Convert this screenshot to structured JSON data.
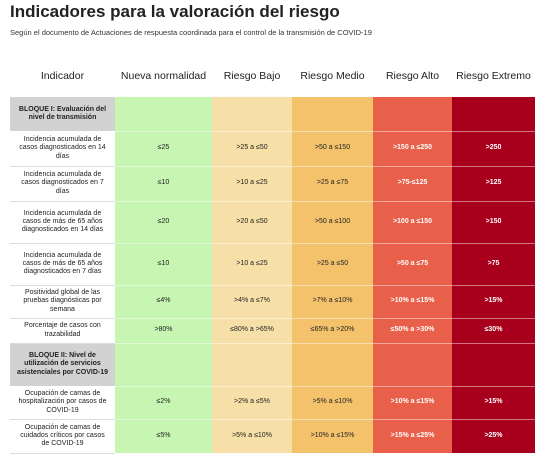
{
  "header": {
    "title": "Indicadores para la valoración del riesgo",
    "subtitle": "Según el documento de Actuaciones de respuesta coordinada para el control de la transmisión de COVID-19"
  },
  "table": {
    "columns": [
      "Indicador",
      "Nueva normalidad",
      "Riesgo Bajo",
      "Riesgo Medio",
      "Riesgo Alto",
      "Riesgo Extremo"
    ],
    "sections": [
      {
        "title": "BLOQUE I: Evaluación del nivel de transmisión",
        "rows": [
          [
            "Incidencia acumulada de casos diagnosticados en 14 días",
            "≤25",
            ">25 a ≤50",
            ">50 a ≤150",
            ">150 a ≤250",
            ">250"
          ],
          [
            "Incidencia acumulada de casos diagnosticados en 7 días",
            "≤10",
            ">10 a ≤25",
            ">25 a ≤75",
            ">75-≤125",
            ">125"
          ],
          [
            "Incidencia acumulada de casos de más de 65 años diagnosticados en 14 días",
            "≤20",
            ">20 a ≤50",
            ">50 a ≤100",
            ">100 a ≤150",
            ">150"
          ],
          [
            "Incidencia acumulada de casos de más de 65 años diagnosticados en 7 días",
            "≤10",
            ">10 a ≤25",
            ">25 a ≤50",
            ">50 a ≤75",
            ">75"
          ],
          [
            "Positividad global de las pruebas diagnósticas por semana",
            "≤4%",
            ">4% a ≤7%",
            ">7% a ≤10%",
            ">10% a ≤15%",
            ">15%"
          ],
          [
            "Porcentaje de casos con trazabilidad",
            ">80%",
            "≤80% a >65%",
            "≤65% a >20%",
            "≤50% a >30%",
            "≤30%"
          ]
        ]
      },
      {
        "title": "BLOQUE II: Nivel de utilización de servicios asistenciales por COVID-19",
        "rows": [
          [
            "Ocupación de camas de hospitalización por casos de COVID-19",
            "≤2%",
            ">2% a ≤5%",
            ">5% a ≤10%",
            ">10% a ≤15%",
            ">15%"
          ],
          [
            "Ocupación de camas de cuidados críticos por casos de COVID-19",
            "≤5%",
            ">5% a ≤10%",
            ">10% a ≤15%",
            ">15% a ≤25%",
            ">25%"
          ]
        ]
      }
    ]
  }
}
